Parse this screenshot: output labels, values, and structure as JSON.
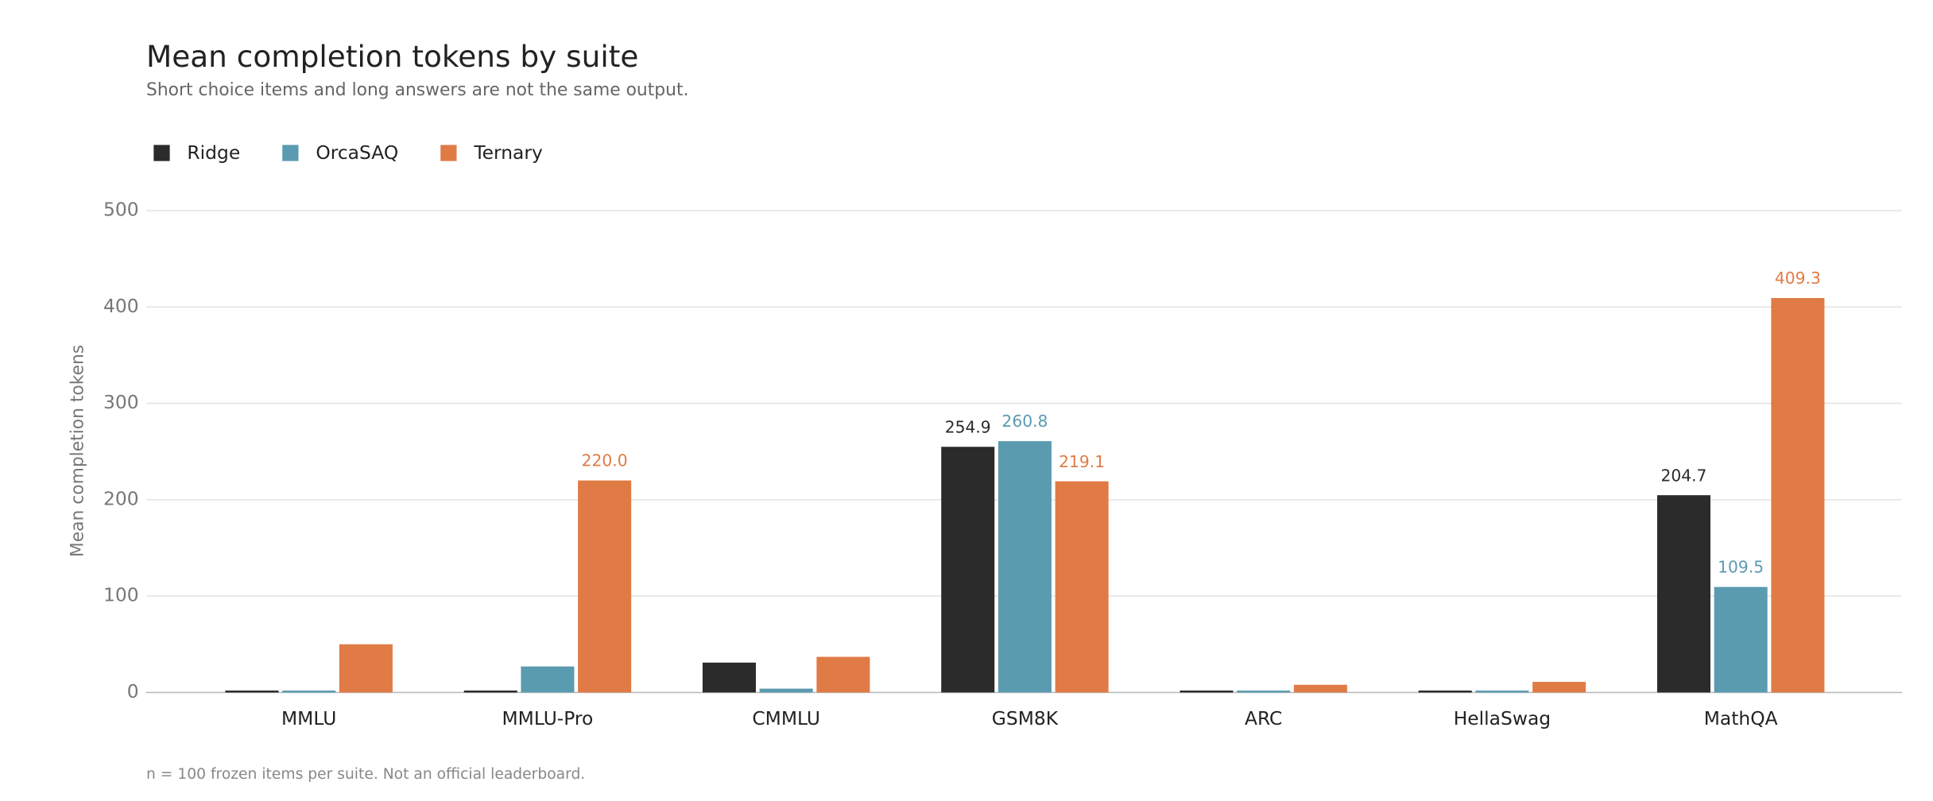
{
  "chart_data": {
    "type": "bar",
    "title": "Mean completion tokens by suite",
    "subtitle": "Short choice items and long answers are not the same output.",
    "y_label": "Mean completion tokens",
    "footnote": "n = 100 frozen items per suite. Not an official leaderboard.",
    "categories": [
      "MMLU",
      "MMLU-Pro",
      "CMMLU",
      "GSM8K",
      "ARC",
      "HellaSwag",
      "MathQA"
    ],
    "series": [
      {
        "name": "Ridge",
        "color": "#2b2b2b",
        "values": [
          2,
          2,
          31,
          254.9,
          2,
          2,
          204.7
        ],
        "value_labels": [
          null,
          null,
          null,
          "254.9",
          null,
          null,
          "204.7"
        ]
      },
      {
        "name": "OrcaSAQ",
        "color": "#5b9bb0",
        "values": [
          2,
          27,
          4,
          260.8,
          2,
          2,
          109.5
        ],
        "value_labels": [
          null,
          null,
          null,
          "260.8",
          null,
          null,
          "109.5"
        ]
      },
      {
        "name": "Ternary",
        "color": "#e07b45",
        "values": [
          50,
          220,
          37,
          219.1,
          8,
          11,
          409.3
        ],
        "value_labels": [
          null,
          "220.0",
          null,
          "219.1",
          null,
          null,
          "409.3"
        ]
      }
    ],
    "ylim": [
      0,
      500
    ],
    "yticks": [
      0,
      100,
      200,
      300,
      400,
      500
    ],
    "grid": true,
    "legend": "top-left"
  }
}
